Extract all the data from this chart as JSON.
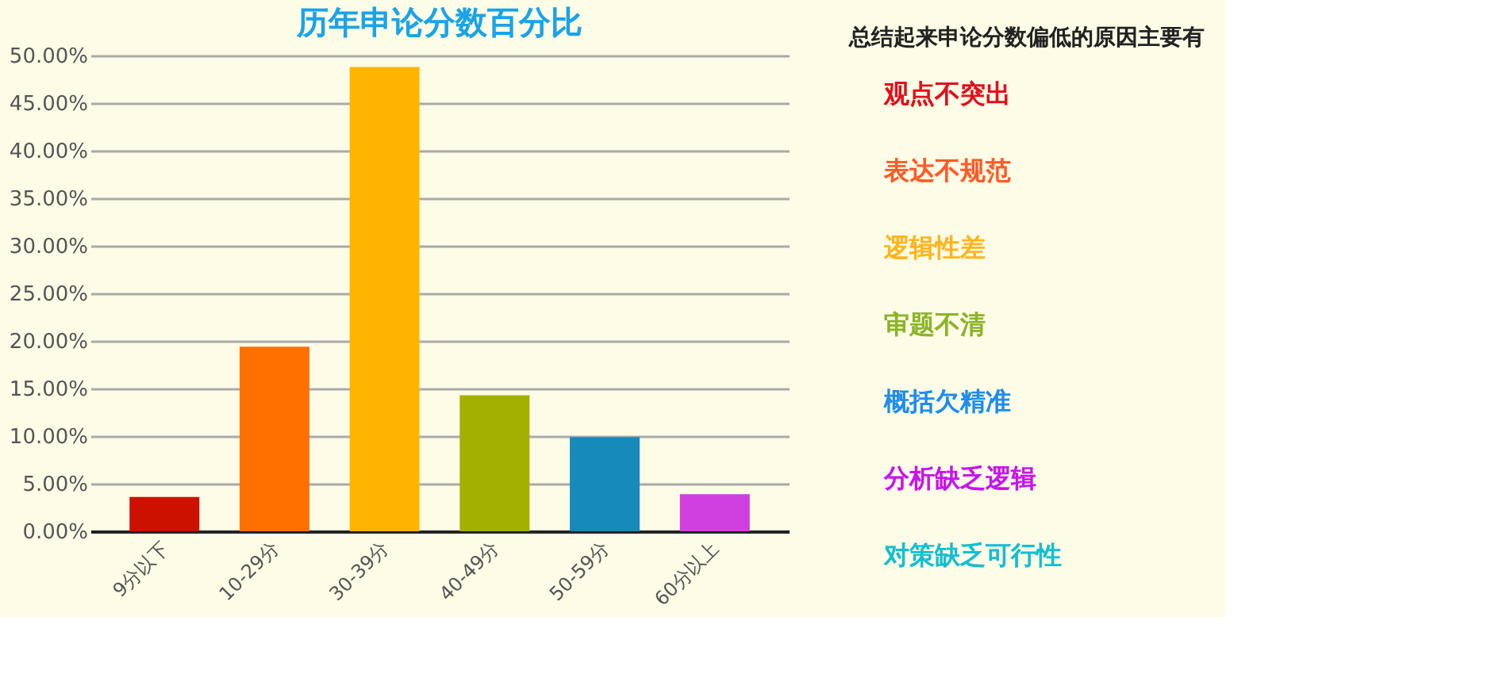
{
  "chart_data": [
    {
      "type": "bar",
      "title": "历年申论分数百分比",
      "categories": [
        "9分以下",
        "10-29分",
        "30-39分",
        "40-49分",
        "50-59分",
        "60分以上"
      ],
      "values": [
        3.6,
        19.4,
        48.8,
        14.3,
        9.9,
        3.9
      ],
      "colors": [
        "#cc1100",
        "#ff7000",
        "#ffb400",
        "#a4b000",
        "#168bbb",
        "#d040e0"
      ],
      "ylim": [
        0,
        50
      ],
      "yticks": [
        {
          "value": 0,
          "label": "0.00%"
        },
        {
          "value": 5,
          "label": "5.00%"
        },
        {
          "value": 10,
          "label": "10.00%"
        },
        {
          "value": 15,
          "label": "15.00%"
        },
        {
          "value": 20,
          "label": "20.00%"
        },
        {
          "value": 25,
          "label": "25.00%"
        },
        {
          "value": 30,
          "label": "30.00%"
        },
        {
          "value": 35,
          "label": "35.00%"
        },
        {
          "value": 40,
          "label": "40.00%"
        },
        {
          "value": 45,
          "label": "45.00%"
        },
        {
          "value": 50,
          "label": "50.00%"
        }
      ],
      "grid": "y"
    },
    {
      "type": "other",
      "title": "总结起来申论分数偏低的原因主要有",
      "annotations": [
        "观点不突出",
        "表达不规范",
        "逻辑性差",
        "审题不清",
        "概括欠精准",
        "分析缺乏逻辑",
        "对策缺乏可行性"
      ],
      "colors": [
        "#e0101c",
        "#ff5a28",
        "#ffb41e",
        "#8cb428",
        "#1e8cf0",
        "#c814f0",
        "#14bed2"
      ]
    }
  ]
}
